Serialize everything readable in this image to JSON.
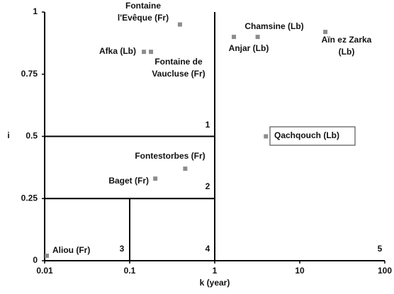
{
  "chart_data": {
    "type": "scatter",
    "x_label": "k (year)",
    "y_label": "i",
    "xlim": [
      0.01,
      100
    ],
    "xticks": [
      0.01,
      0.1,
      1,
      10,
      100
    ],
    "xscale": "log",
    "ylim": [
      0,
      1
    ],
    "yticks": [
      0,
      0.25,
      0.5,
      0.75,
      1
    ],
    "color": "#8c8c8c",
    "x": [
      0.39,
      0.147,
      0.178,
      1.68,
      3.2,
      20,
      4,
      0.45,
      0.2,
      0.0106
    ],
    "y": [
      0.95,
      0.84,
      0.84,
      0.9,
      0.9,
      0.92,
      0.5,
      0.37,
      0.33,
      0.02
    ],
    "point_labels": [
      [
        "Fontaine",
        "l'Evêque (Fr)"
      ],
      [
        "Afka (Lb)"
      ],
      [
        "Fontaine de",
        "Vaucluse (Fr)"
      ],
      [
        "Anjar (Lb)"
      ],
      [
        "Chamsine (Lb)"
      ],
      [
        "Aïn ez Zarka",
        "(Lb)"
      ],
      [
        "Qachqouch (Lb)"
      ],
      [
        "Fontestorbes (Fr)"
      ],
      [
        "Baget (Fr)"
      ],
      [
        "Aliou (Fr)"
      ]
    ],
    "vlines": [
      {
        "x": 1,
        "y": [
          0,
          1
        ]
      },
      {
        "x": 0.1,
        "y": [
          0,
          0.25
        ]
      }
    ],
    "hlines": [
      {
        "y": 0.5,
        "x": [
          0.01,
          1
        ]
      },
      {
        "y": 0.25,
        "x": [
          0.01,
          1
        ]
      }
    ],
    "zone_labels": [
      "1",
      "2",
      "3",
      "4",
      "5"
    ]
  }
}
